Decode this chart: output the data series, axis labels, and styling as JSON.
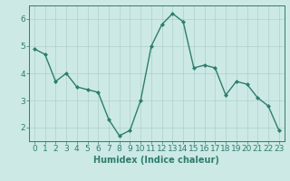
{
  "x": [
    0,
    1,
    2,
    3,
    4,
    5,
    6,
    7,
    8,
    9,
    10,
    11,
    12,
    13,
    14,
    15,
    16,
    17,
    18,
    19,
    20,
    21,
    22,
    23
  ],
  "y": [
    4.9,
    4.7,
    3.7,
    4.0,
    3.5,
    3.4,
    3.3,
    2.3,
    1.7,
    1.9,
    3.0,
    5.0,
    5.8,
    6.2,
    5.9,
    4.2,
    4.3,
    4.2,
    3.2,
    3.7,
    3.6,
    3.1,
    2.8,
    1.9
  ],
  "line_color": "#2e7d6e",
  "marker": "D",
  "marker_size": 2.0,
  "bg_color": "#cce9e5",
  "grid_color_major": "#b0d0cc",
  "grid_color_minor": "#c8e4e0",
  "axis_color": "#2e7d6e",
  "xlabel": "Humidex (Indice chaleur)",
  "ylim": [
    1.5,
    6.5
  ],
  "xlim": [
    -0.5,
    23.5
  ],
  "yticks": [
    2,
    3,
    4,
    5,
    6
  ],
  "xticks": [
    0,
    1,
    2,
    3,
    4,
    5,
    6,
    7,
    8,
    9,
    10,
    11,
    12,
    13,
    14,
    15,
    16,
    17,
    18,
    19,
    20,
    21,
    22,
    23
  ],
  "xlabel_fontsize": 7,
  "tick_fontsize": 6.5,
  "line_width": 1.0
}
